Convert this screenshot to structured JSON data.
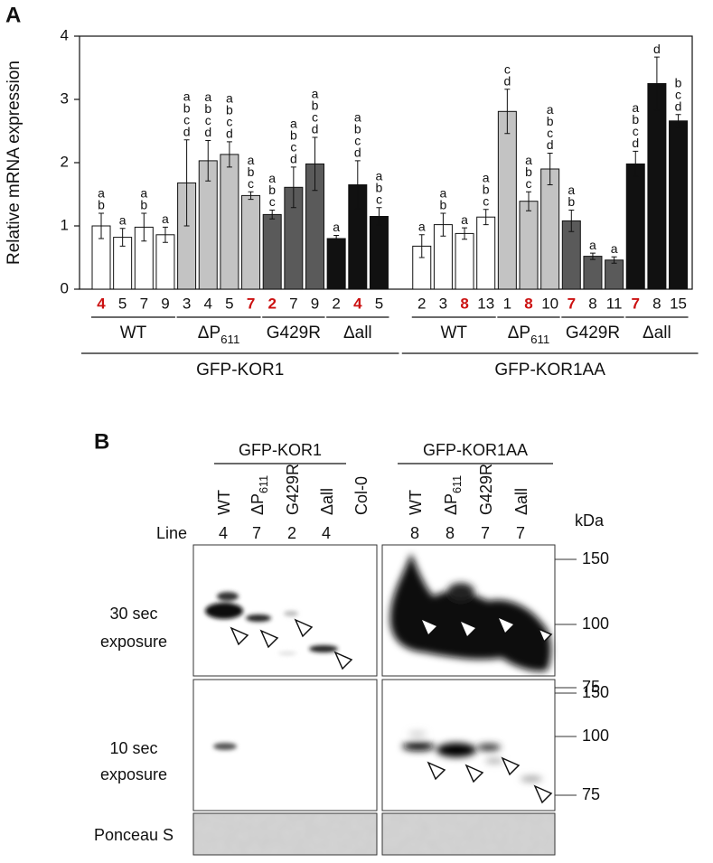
{
  "chart_data": {
    "type": "bar",
    "panel_label": "A",
    "y_label": "Relative mRNA expression",
    "ylim": [
      0,
      4
    ],
    "yticks": [
      0,
      1,
      2,
      3,
      4
    ],
    "highlight_color": "#cc1111",
    "supergroups": [
      {
        "name": "GFP-KOR1",
        "groups": [
          {
            "name": "WT",
            "color": "#ffffff",
            "categories": [
              "4",
              "5",
              "7",
              "9"
            ],
            "highlighted": [
              true,
              false,
              false,
              false
            ],
            "values": [
              1.0,
              0.82,
              0.98,
              0.86
            ],
            "errors": [
              0.2,
              0.14,
              0.22,
              0.12
            ],
            "letters": [
              [
                "a",
                "b"
              ],
              [
                "a"
              ],
              [
                "a",
                "b"
              ],
              [
                "a"
              ]
            ]
          },
          {
            "name": "ΔP611",
            "color": "#c3c3c3",
            "categories": [
              "3",
              "4",
              "5",
              "7"
            ],
            "highlighted": [
              false,
              false,
              false,
              true
            ],
            "values": [
              1.68,
              2.03,
              2.13,
              1.48
            ],
            "errors": [
              0.68,
              0.32,
              0.2,
              0.06
            ],
            "letters": [
              [
                "a",
                "b",
                "c",
                "d"
              ],
              [
                "a",
                "b",
                "c",
                "d"
              ],
              [
                "a",
                "b",
                "c",
                "d"
              ],
              [
                "a",
                "b",
                "c"
              ]
            ]
          },
          {
            "name": "G429R",
            "color": "#5a5a5a",
            "categories": [
              "2",
              "7",
              "9"
            ],
            "highlighted": [
              true,
              false,
              false
            ],
            "values": [
              1.18,
              1.61,
              1.98
            ],
            "errors": [
              0.07,
              0.32,
              0.42
            ],
            "letters": [
              [
                "a",
                "b",
                "c"
              ],
              [
                "a",
                "b",
                "c",
                "d"
              ],
              [
                "a",
                "b",
                "c",
                "d"
              ]
            ]
          },
          {
            "name": "Δall",
            "color": "#111111",
            "categories": [
              "2",
              "4",
              "5"
            ],
            "highlighted": [
              false,
              true,
              false
            ],
            "values": [
              0.8,
              1.65,
              1.15
            ],
            "errors": [
              0.05,
              0.38,
              0.14
            ],
            "letters": [
              [
                "a"
              ],
              [
                "a",
                "b",
                "c",
                "d"
              ],
              [
                "a",
                "b",
                "c"
              ]
            ]
          }
        ]
      },
      {
        "name": "GFP-KOR1AA",
        "groups": [
          {
            "name": "WT",
            "color": "#ffffff",
            "categories": [
              "2",
              "3",
              "8",
              "13"
            ],
            "highlighted": [
              false,
              false,
              true,
              false
            ],
            "values": [
              0.68,
              1.02,
              0.88,
              1.14
            ],
            "errors": [
              0.18,
              0.18,
              0.09,
              0.12
            ],
            "letters": [
              [
                "a"
              ],
              [
                "a",
                "b"
              ],
              [
                "a"
              ],
              [
                "a",
                "b",
                "c"
              ]
            ]
          },
          {
            "name": "ΔP611",
            "color": "#c3c3c3",
            "categories": [
              "1",
              "8",
              "10"
            ],
            "highlighted": [
              false,
              true,
              false
            ],
            "values": [
              2.81,
              1.39,
              1.9
            ],
            "errors": [
              0.35,
              0.15,
              0.25
            ],
            "letters": [
              [
                "c",
                "d"
              ],
              [
                "a",
                "b",
                "c"
              ],
              [
                "a",
                "b",
                "c",
                "d"
              ]
            ]
          },
          {
            "name": "G429R",
            "color": "#5a5a5a",
            "categories": [
              "7",
              "8",
              "11"
            ],
            "highlighted": [
              true,
              false,
              false
            ],
            "values": [
              1.08,
              0.52,
              0.46
            ],
            "errors": [
              0.17,
              0.05,
              0.05
            ],
            "letters": [
              [
                "a",
                "b"
              ],
              [
                "a"
              ],
              [
                "a"
              ]
            ]
          },
          {
            "name": "Δall",
            "color": "#111111",
            "categories": [
              "7",
              "8",
              "15"
            ],
            "highlighted": [
              true,
              false,
              false
            ],
            "values": [
              1.98,
              3.25,
              2.66
            ],
            "errors": [
              0.2,
              0.42,
              0.1
            ],
            "letters": [
              [
                "a",
                "b",
                "c",
                "d"
              ],
              [
                "d"
              ],
              [
                "b",
                "c",
                "d"
              ]
            ]
          }
        ]
      }
    ]
  },
  "blot": {
    "panel_label": "B",
    "line_label": "Line",
    "unit_label": "kDa",
    "constructs": [
      {
        "name": "GFP-KOR1",
        "lanes": [
          "WT",
          "ΔP611",
          "G429R",
          "Δall",
          "Col-0"
        ],
        "lines": [
          "4",
          "7",
          "2",
          "4",
          null
        ]
      },
      {
        "name": "GFP-KOR1AA",
        "lanes": [
          "WT",
          "ΔP611",
          "G429R",
          "Δall"
        ],
        "lines": [
          "8",
          "8",
          "7",
          "7"
        ]
      }
    ],
    "rows": [
      {
        "label": [
          "30 sec",
          "exposure"
        ],
        "markers": [
          "150",
          "100",
          "75"
        ]
      },
      {
        "label": [
          "10 sec",
          "exposure"
        ],
        "markers": [
          "150",
          "100",
          "75"
        ]
      },
      {
        "label": [
          "Ponceau S"
        ]
      }
    ]
  }
}
